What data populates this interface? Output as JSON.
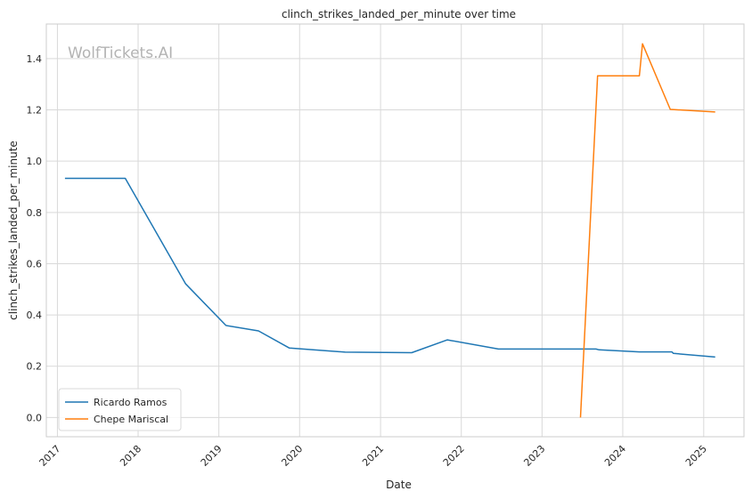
{
  "chart_data": {
    "type": "line",
    "title": "clinch_strikes_landed_per_minute over time",
    "xlabel": "Date",
    "ylabel": "clinch_strikes_landed_per_minute",
    "watermark": "WolfTickets.AI",
    "x_ticks": [
      "2017",
      "2018",
      "2019",
      "2020",
      "2021",
      "2022",
      "2023",
      "2024",
      "2025"
    ],
    "y_ticks": [
      "0.0",
      "0.2",
      "0.4",
      "0.6",
      "0.8",
      "1.0",
      "1.2",
      "1.4"
    ],
    "xlim": [
      "2016-11-12",
      "2025-07-02"
    ],
    "ylim": [
      -0.075,
      1.535
    ],
    "grid": true,
    "legend_position": "lower-left",
    "series": [
      {
        "name": "Ricardo Ramos",
        "color": "#1f77b4",
        "points": [
          {
            "x": "2017-02-04",
            "y": 0.933
          },
          {
            "x": "2017-11-04",
            "y": 0.933
          },
          {
            "x": "2018-08-04",
            "y": 0.521
          },
          {
            "x": "2019-02-02",
            "y": 0.359
          },
          {
            "x": "2019-06-29",
            "y": 0.338
          },
          {
            "x": "2019-11-16",
            "y": 0.271
          },
          {
            "x": "2020-07-25",
            "y": 0.255
          },
          {
            "x": "2021-05-22",
            "y": 0.253
          },
          {
            "x": "2021-10-30",
            "y": 0.303
          },
          {
            "x": "2022-06-18",
            "y": 0.267
          },
          {
            "x": "2023-09-02",
            "y": 0.267
          },
          {
            "x": "2023-09-16",
            "y": 0.264
          },
          {
            "x": "2024-03-16",
            "y": 0.256
          },
          {
            "x": "2024-08-10",
            "y": 0.256
          },
          {
            "x": "2024-08-17",
            "y": 0.25
          },
          {
            "x": "2025-02-22",
            "y": 0.236
          }
        ]
      },
      {
        "name": "Chepe Mariscal",
        "color": "#ff7f0e",
        "points": [
          {
            "x": "2023-06-24",
            "y": 0.0
          },
          {
            "x": "2023-09-09",
            "y": 1.333
          },
          {
            "x": "2024-03-16",
            "y": 1.333
          },
          {
            "x": "2024-03-30",
            "y": 1.458
          },
          {
            "x": "2024-08-03",
            "y": 1.202
          },
          {
            "x": "2025-02-22",
            "y": 1.192
          }
        ]
      }
    ]
  }
}
